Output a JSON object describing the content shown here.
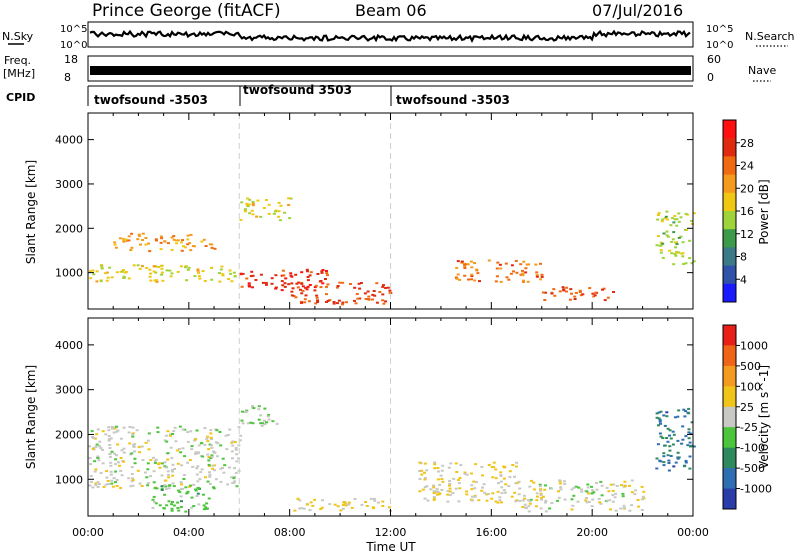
{
  "header": {
    "station": "Prince George (fitACF)",
    "beam": "Beam 06",
    "date": "07/Jul/2016"
  },
  "strip": {
    "nsky_label": "N.Sky",
    "nsky_ticks": [
      "10^5",
      "10^0"
    ],
    "nsearch_ticks": [
      "10^5",
      "10^0"
    ],
    "nsearch_label": "N.Search",
    "freq_label": "Freq.",
    "freq_unit": "[MHz]",
    "freq_ticks": [
      "18",
      "8"
    ],
    "nave_ticks": [
      "60",
      "0"
    ],
    "nave_label": "Nave",
    "cpid_label": "CPID",
    "cpid_segments": [
      "twofsound -3503",
      "twofsound 3503",
      "twofsound -3503"
    ]
  },
  "axes": {
    "ylabel": "Slant Range [km]",
    "xlabel": "Time UT",
    "yticks": [
      "1000",
      "2000",
      "3000",
      "4000"
    ],
    "xticks": [
      "00:00",
      "04:00",
      "08:00",
      "12:00",
      "16:00",
      "20:00",
      "00:00"
    ]
  },
  "power_bar": {
    "title": "Power [dB]",
    "ticks": [
      "4",
      "8",
      "12",
      "16",
      "20",
      "24",
      "28"
    ],
    "colors": [
      "#1a1aff",
      "#2f52a8",
      "#3b7a86",
      "#3d9a4a",
      "#9ed43a",
      "#f0c814",
      "#f59a1c",
      "#f06a12",
      "#e02a10",
      "#ff1010"
    ]
  },
  "velocity_bar": {
    "title": "Velocity [m s^-1]",
    "ticks": [
      "1000",
      "500",
      "100",
      "25",
      "-25",
      "-100",
      "-500",
      "-1000"
    ],
    "colors": [
      "#2a3ca8",
      "#2f6eb0",
      "#2e8a5c",
      "#4cc43c",
      "#c8c8c4",
      "#f0c418",
      "#f49a20",
      "#f06418",
      "#e81e18"
    ]
  },
  "chart_data": [
    {
      "type": "heatmap",
      "title": "Power [dB]",
      "xlabel": "Time UT",
      "ylabel": "Slant Range [km]",
      "xlim": [
        "00:00",
        "24:00"
      ],
      "ylim": [
        180,
        4600
      ],
      "clim": [
        0,
        30
      ],
      "series": [
        {
          "x_start": "00:00",
          "x_end": "05:50",
          "y_start": 800,
          "y_end": 1200,
          "value": 16
        },
        {
          "x_start": "01:00",
          "x_end": "05:00",
          "y_start": 1500,
          "y_end": 1900,
          "value": 20
        },
        {
          "x_start": "06:00",
          "x_end": "08:00",
          "y_start": 2200,
          "y_end": 2700,
          "value": 16
        },
        {
          "x_start": "06:00",
          "x_end": "09:30",
          "y_start": 600,
          "y_end": 1100,
          "value": 26
        },
        {
          "x_start": "08:00",
          "x_end": "12:00",
          "y_start": 300,
          "y_end": 800,
          "value": 24
        },
        {
          "x_start": "14:30",
          "x_end": "18:00",
          "y_start": 800,
          "y_end": 1300,
          "value": 22
        },
        {
          "x_start": "18:00",
          "x_end": "21:00",
          "y_start": 400,
          "y_end": 700,
          "value": 24
        },
        {
          "x_start": "22:30",
          "x_end": "24:00",
          "y_start": 1200,
          "y_end": 2400,
          "value": 14
        }
      ]
    },
    {
      "type": "heatmap",
      "title": "Velocity [m s^-1]",
      "xlabel": "Time UT",
      "ylabel": "Slant Range [km]",
      "xlim": [
        "00:00",
        "24:00"
      ],
      "ylim": [
        180,
        4600
      ],
      "clim": [
        -1000,
        1000
      ],
      "series": [
        {
          "x_start": "00:00",
          "x_end": "06:00",
          "y_start": 800,
          "y_end": 2200,
          "value": 0
        },
        {
          "x_start": "02:30",
          "x_end": "05:00",
          "y_start": 300,
          "y_end": 900,
          "value": -200
        },
        {
          "x_start": "06:00",
          "x_end": "07:30",
          "y_start": 2200,
          "y_end": 2700,
          "value": -150
        },
        {
          "x_start": "08:00",
          "x_end": "12:00",
          "y_start": 300,
          "y_end": 600,
          "value": 150
        },
        {
          "x_start": "13:00",
          "x_end": "17:00",
          "y_start": 500,
          "y_end": 1400,
          "value": 120
        },
        {
          "x_start": "17:00",
          "x_end": "22:00",
          "y_start": 300,
          "y_end": 1000,
          "value": 0
        },
        {
          "x_start": "22:30",
          "x_end": "24:00",
          "y_start": 1200,
          "y_end": 2600,
          "value": -600
        }
      ]
    }
  ]
}
